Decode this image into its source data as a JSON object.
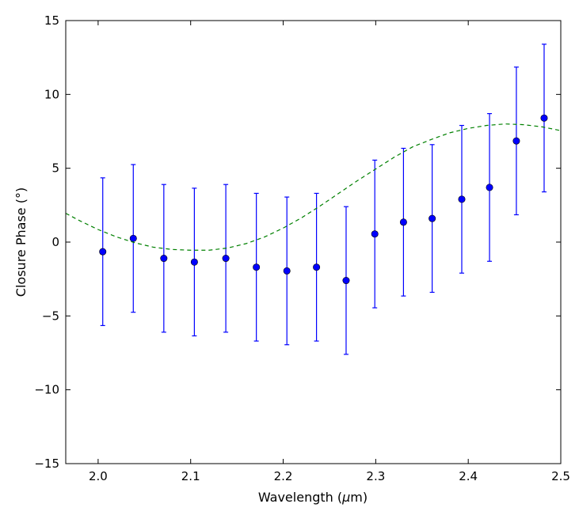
{
  "chart_data": {
    "type": "scatter",
    "title": "",
    "xlabel_prefix": "Wavelength (",
    "xlabel_mu": "μ",
    "xlabel_suffix": "m)",
    "ylabel": "Closure Phase (°)",
    "xlim": [
      1.965,
      2.5
    ],
    "ylim": [
      -15,
      15
    ],
    "xticks": [
      2.0,
      2.1,
      2.2,
      2.3,
      2.4,
      2.5
    ],
    "xtick_labels": [
      "2.0",
      "2.1",
      "2.2",
      "2.3",
      "2.4",
      "2.5"
    ],
    "yticks": [
      -15,
      -10,
      -5,
      0,
      5,
      10,
      15
    ],
    "ytick_labels": [
      "−15",
      "−10",
      "−5",
      "0",
      "5",
      "10",
      "15"
    ],
    "grid": false,
    "series": [
      {
        "kind": "errorbar",
        "color": "#0000ff",
        "x": [
          2.005,
          2.038,
          2.071,
          2.104,
          2.138,
          2.171,
          2.204,
          2.236,
          2.268,
          2.299,
          2.33,
          2.361,
          2.393,
          2.423,
          2.452,
          2.482
        ],
        "y": [
          -0.65,
          0.25,
          -1.1,
          -1.35,
          -1.1,
          -1.7,
          -1.95,
          -1.7,
          -2.6,
          0.55,
          1.35,
          1.6,
          2.9,
          3.7,
          6.85,
          8.4
        ],
        "err": [
          5.0,
          5.0,
          5.0,
          5.0,
          5.0,
          5.0,
          5.0,
          5.0,
          5.0,
          5.0,
          5.0,
          5.0,
          5.0,
          5.0,
          5.0,
          5.0
        ]
      },
      {
        "kind": "line",
        "style": "dashed",
        "color": "#008000",
        "x": [
          1.965,
          1.98,
          2.0,
          2.02,
          2.04,
          2.06,
          2.08,
          2.1,
          2.12,
          2.14,
          2.16,
          2.18,
          2.2,
          2.22,
          2.24,
          2.26,
          2.28,
          2.3,
          2.32,
          2.34,
          2.36,
          2.38,
          2.4,
          2.42,
          2.44,
          2.46,
          2.48,
          2.5
        ],
        "y": [
          1.95,
          1.45,
          0.85,
          0.35,
          -0.05,
          -0.35,
          -0.5,
          -0.55,
          -0.55,
          -0.4,
          -0.1,
          0.35,
          0.95,
          1.65,
          2.45,
          3.3,
          4.15,
          4.95,
          5.75,
          6.45,
          6.95,
          7.4,
          7.7,
          7.9,
          8.0,
          7.95,
          7.8,
          7.55
        ]
      }
    ]
  }
}
